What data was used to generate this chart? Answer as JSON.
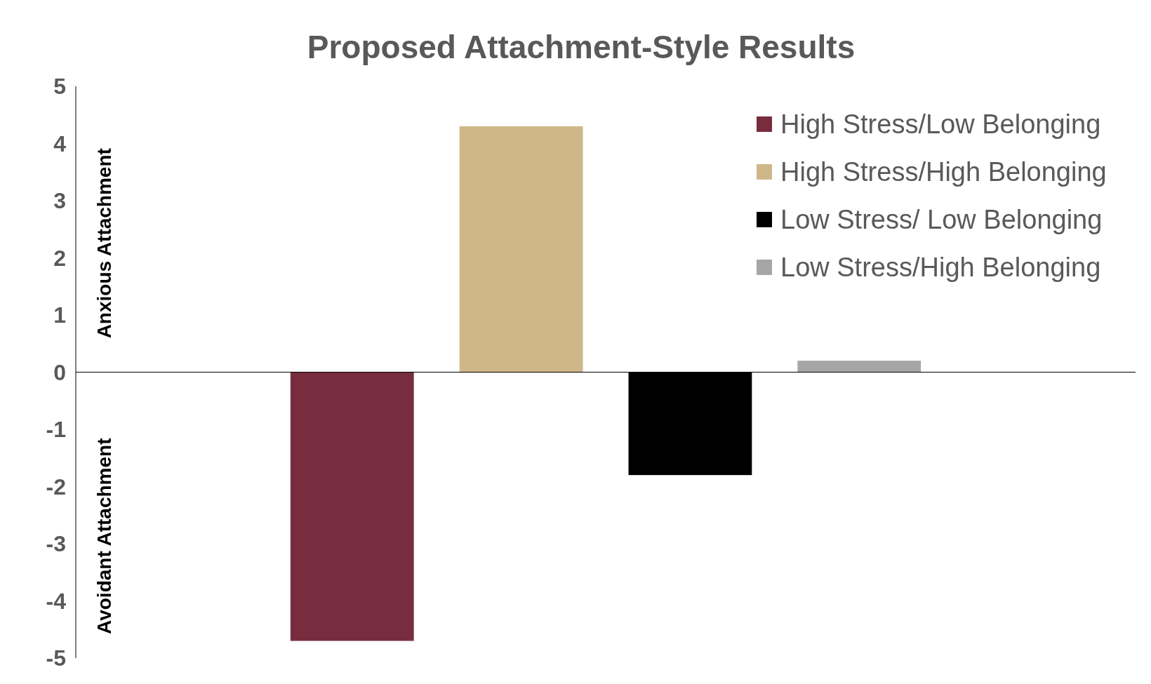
{
  "chart_data": {
    "type": "bar",
    "title": "Proposed Attachment-Style Results",
    "categories": [
      null
    ],
    "series": [
      {
        "name": "High Stress/Low Belonging",
        "color": "#772d3d",
        "values": [
          -4.7
        ]
      },
      {
        "name": "High Stress/High Belonging",
        "color": "#cfb789",
        "values": [
          4.3
        ]
      },
      {
        "name": "Low Stress/ Low Belonging",
        "color": "#000000",
        "values": [
          -1.8
        ]
      },
      {
        "name": "Low Stress/High Belonging",
        "color": "#a6a6a6",
        "values": [
          0.2
        ]
      }
    ],
    "annotations": [
      "Anxious Attachment",
      "Avoidant Attachment"
    ],
    "ylim": [
      -5,
      5
    ],
    "yticks": [
      -5,
      -4,
      -3,
      -2,
      -1,
      0,
      1,
      2,
      3,
      4,
      5
    ],
    "legend": "top right"
  }
}
